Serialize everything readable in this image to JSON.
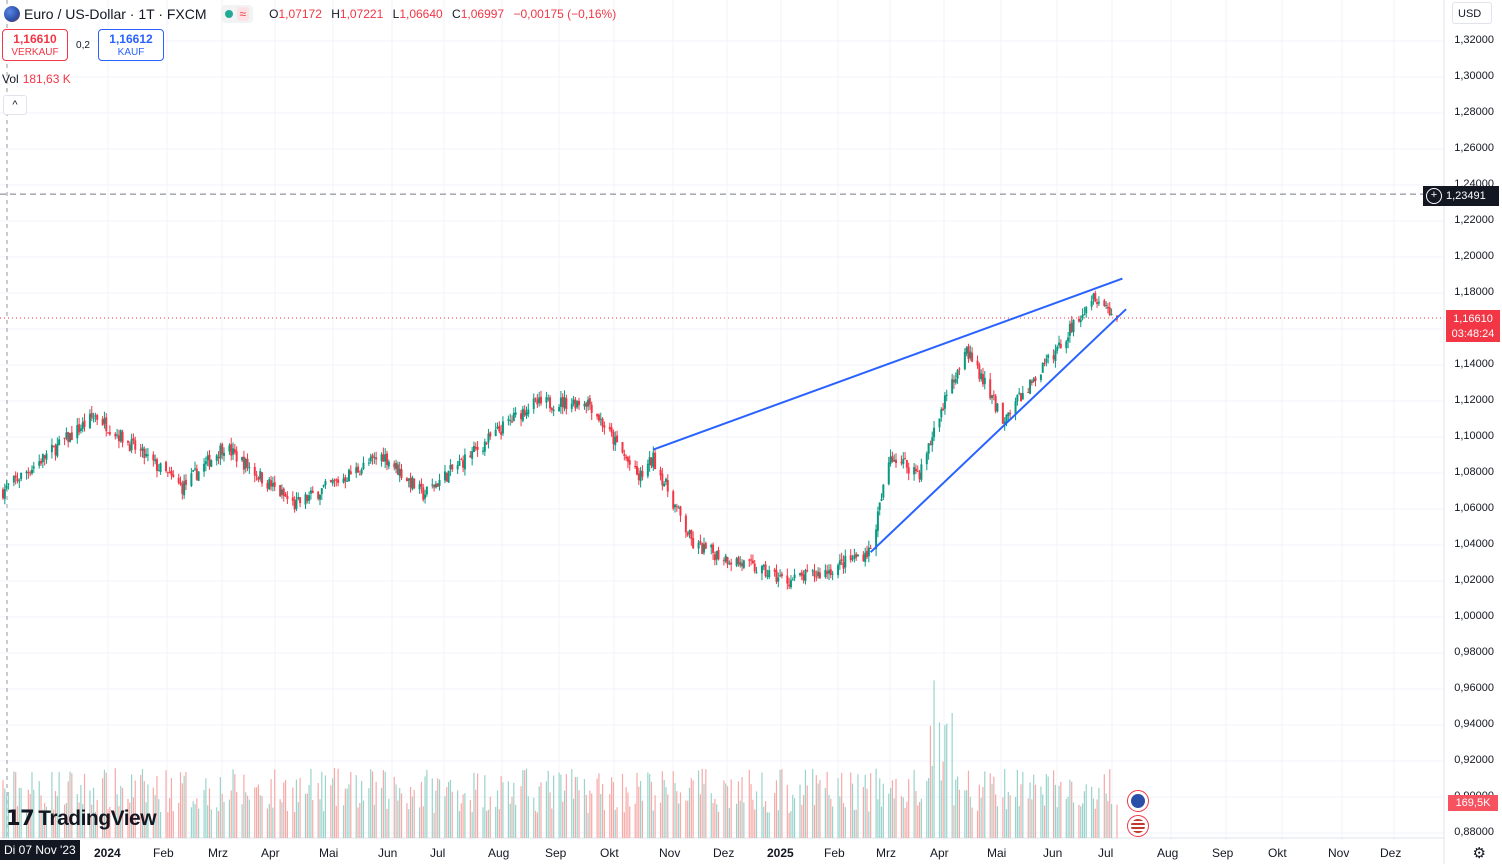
{
  "header": {
    "title": "Euro / US-Dollar · 1T · FXCM",
    "o_label": "O",
    "o_value": "1,07172",
    "h_label": "H",
    "h_value": "1,07221",
    "l_label": "L",
    "l_value": "1,06640",
    "c_label": "C",
    "c_value": "1,06997",
    "change": "−0,00175 (−0,16%)",
    "status_icon": "approx-icon"
  },
  "trade": {
    "sell_price": "1,16610",
    "sell_label": "VERKAUF",
    "spread": "0,2",
    "buy_price": "1,16612",
    "buy_label": "KAUF"
  },
  "volume": {
    "label": "Vol",
    "value": "181,63 K"
  },
  "currency": "USD",
  "price_axis": [
    "1,32000",
    "1,30000",
    "1,28000",
    "1,26000",
    "1,24000",
    "1,22000",
    "1,20000",
    "1,18000",
    "1,16000",
    "1,14000",
    "1,12000",
    "1,10000",
    "1,08000",
    "1,06000",
    "1,04000",
    "1,02000",
    "1,00000",
    "0,98000",
    "0,96000",
    "0,94000",
    "0,92000",
    "0,90000",
    "0,88000"
  ],
  "time_axis": [
    "2024",
    "Feb",
    "Mrz",
    "Apr",
    "Mai",
    "Jun",
    "Jul",
    "Aug",
    "Sep",
    "Okt",
    "Nov",
    "Dez",
    "2025",
    "Feb",
    "Mrz",
    "Apr",
    "Mai",
    "Jun",
    "Jul",
    "Aug",
    "Sep",
    "Okt",
    "Nov",
    "Dez"
  ],
  "crosshair_date": "Di 07 Nov '23",
  "horizontal_line": "1,23491",
  "last_price": {
    "price": "1,16610",
    "countdown": "03:48:24"
  },
  "last_volume": "169,5K",
  "logo_text": "TradingView",
  "colors": {
    "up": "#089981",
    "down": "#f23645",
    "trendline": "#2962ff",
    "vol_up": "#9ad3cb",
    "vol_down": "#f7a9a7"
  },
  "chart_data": {
    "type": "candlestick",
    "instrument": "EUR/USD",
    "interval": "1D",
    "x_range": [
      "2023-11-07",
      "2025-07-14"
    ],
    "ylim": [
      0.87,
      1.33
    ],
    "key_points": [
      {
        "date": "2023-11-07",
        "close": 1.07
      },
      {
        "date": "2023-12-28",
        "close": 1.112
      },
      {
        "date": "2024-02-14",
        "close": 1.072
      },
      {
        "date": "2024-03-08",
        "close": 1.095
      },
      {
        "date": "2024-04-16",
        "close": 1.062
      },
      {
        "date": "2024-06-04",
        "close": 1.09
      },
      {
        "date": "2024-06-26",
        "close": 1.068
      },
      {
        "date": "2024-08-24",
        "close": 1.118
      },
      {
        "date": "2024-09-25",
        "close": 1.12
      },
      {
        "date": "2024-10-23",
        "close": 1.077
      },
      {
        "date": "2024-10-31",
        "close": 1.088
      },
      {
        "date": "2024-11-22",
        "close": 1.04
      },
      {
        "date": "2025-01-13",
        "close": 1.02
      },
      {
        "date": "2025-02-03",
        "close": 1.025
      },
      {
        "date": "2025-02-28",
        "close": 1.037
      },
      {
        "date": "2025-03-11",
        "close": 1.09
      },
      {
        "date": "2025-03-27",
        "close": 1.08
      },
      {
        "date": "2025-04-21",
        "close": 1.15
      },
      {
        "date": "2025-05-12",
        "close": 1.11
      },
      {
        "date": "2025-06-12",
        "close": 1.15
      },
      {
        "date": "2025-07-01",
        "close": 1.18
      },
      {
        "date": "2025-07-14",
        "close": 1.166
      }
    ],
    "trendlines": [
      {
        "from": {
          "date": "2024-10-31",
          "price": 1.093
        },
        "to": {
          "date": "2025-07-17",
          "price": 1.188
        }
      },
      {
        "from": {
          "date": "2025-02-28",
          "price": 1.036
        },
        "to": {
          "date": "2025-07-19",
          "price": 1.171
        }
      }
    ]
  }
}
